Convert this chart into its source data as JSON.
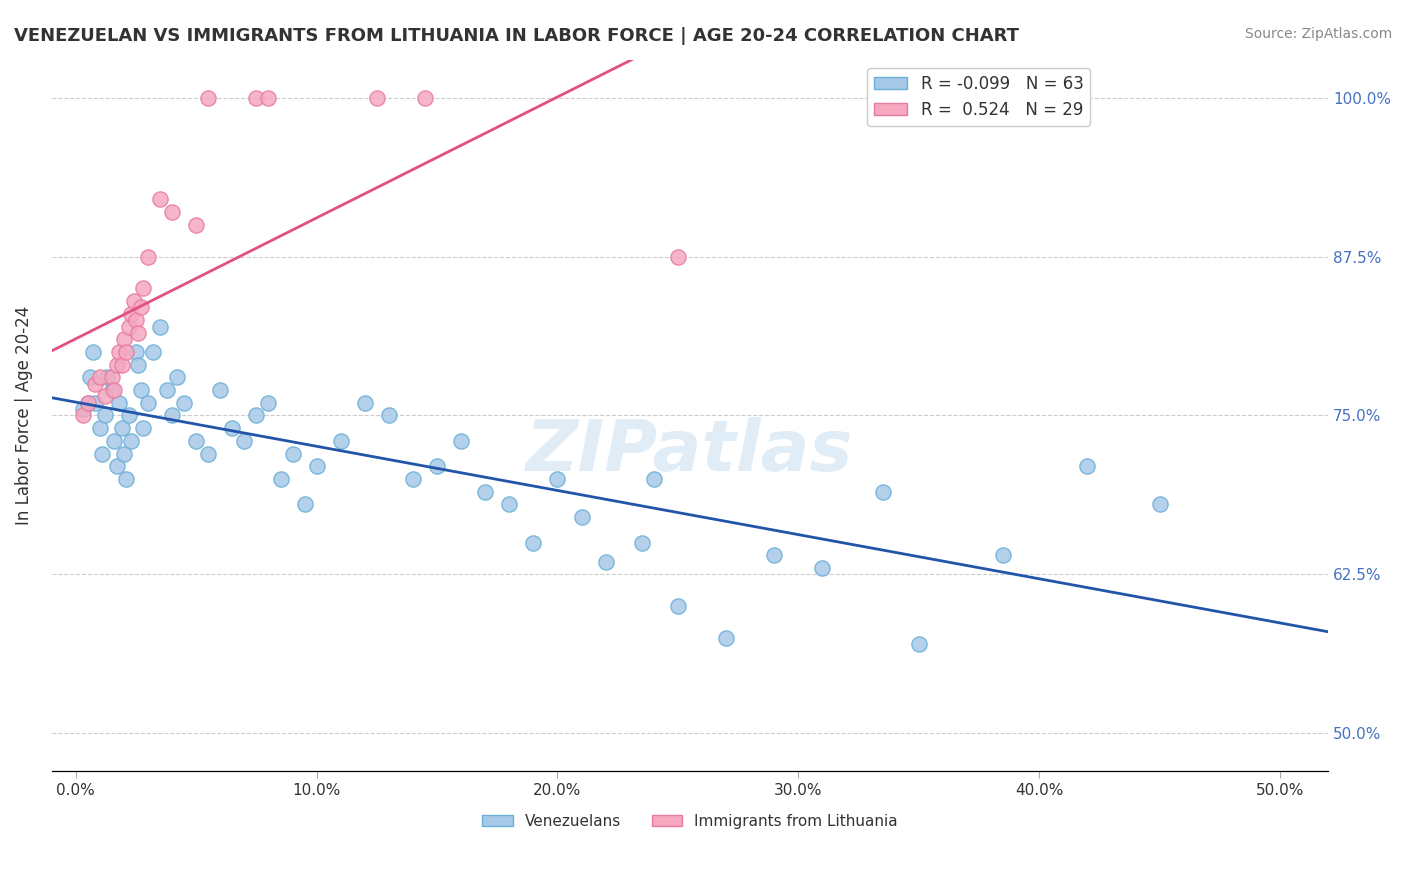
{
  "title": "VENEZUELAN VS IMMIGRANTS FROM LITHUANIA IN LABOR FORCE | AGE 20-24 CORRELATION CHART",
  "source": "Source: ZipAtlas.com",
  "xlabel": "",
  "ylabel": "In Labor Force | Age 20-24",
  "x_tick_labels": [
    "0.0%",
    "10.0%",
    "20.0%",
    "30.0%",
    "40.0%",
    "50.0%"
  ],
  "x_tick_values": [
    0.0,
    10.0,
    20.0,
    30.0,
    40.0,
    50.0
  ],
  "y_tick_labels": [
    "50.0%",
    "62.5%",
    "75.0%",
    "87.5%",
    "100.0%"
  ],
  "y_tick_values": [
    50.0,
    62.5,
    75.0,
    87.5,
    100.0
  ],
  "xlim": [
    -1.0,
    52.0
  ],
  "ylim": [
    47.0,
    103.0
  ],
  "venezuelan_color": "#a8c8e8",
  "venezuela_edge_color": "#6aafd6",
  "lithuania_color": "#f5a8c0",
  "lithuania_edge_color": "#e87aa0",
  "venezuelan_R": -0.099,
  "venezuelan_N": 63,
  "lithuania_R": 0.524,
  "lithuania_N": 29,
  "trend_blue_color": "#2255aa",
  "trend_pink_color": "#e05080",
  "legend_label_venezuelan": "Venezuelans",
  "legend_label_lithuania": "Immigrants from Lithuania",
  "watermark": "ZIPatlas",
  "venezuelan_x": [
    0.3,
    0.5,
    0.6,
    0.7,
    0.8,
    1.0,
    1.1,
    1.2,
    1.3,
    1.5,
    1.6,
    1.7,
    1.8,
    1.9,
    2.0,
    2.1,
    2.2,
    2.3,
    2.5,
    2.6,
    2.7,
    2.8,
    3.0,
    3.2,
    3.5,
    3.8,
    4.0,
    4.2,
    4.5,
    5.0,
    5.5,
    6.0,
    6.5,
    7.0,
    7.5,
    8.0,
    8.5,
    9.0,
    9.5,
    10.0,
    11.0,
    12.0,
    13.0,
    14.0,
    15.0,
    16.0,
    17.0,
    18.0,
    19.0,
    20.0,
    21.0,
    22.0,
    23.5,
    24.0,
    25.0,
    27.0,
    29.0,
    31.0,
    33.5,
    35.0,
    38.5,
    42.0,
    45.0
  ],
  "venezuelan_y": [
    75.5,
    76.0,
    78.0,
    80.0,
    76.0,
    74.0,
    72.0,
    75.0,
    78.0,
    77.0,
    73.0,
    71.0,
    76.0,
    74.0,
    72.0,
    70.0,
    75.0,
    73.0,
    80.0,
    79.0,
    77.0,
    74.0,
    76.0,
    80.0,
    82.0,
    77.0,
    75.0,
    78.0,
    76.0,
    73.0,
    72.0,
    77.0,
    74.0,
    73.0,
    75.0,
    76.0,
    70.0,
    72.0,
    68.0,
    71.0,
    73.0,
    76.0,
    75.0,
    70.0,
    71.0,
    73.0,
    69.0,
    68.0,
    65.0,
    70.0,
    67.0,
    63.5,
    65.0,
    70.0,
    60.0,
    57.5,
    64.0,
    63.0,
    69.0,
    57.0,
    64.0,
    71.0,
    68.0
  ],
  "lithuania_x": [
    0.3,
    0.5,
    0.8,
    1.0,
    1.2,
    1.5,
    1.6,
    1.7,
    1.8,
    1.9,
    2.0,
    2.1,
    2.2,
    2.3,
    2.4,
    2.5,
    2.6,
    2.7,
    2.8,
    3.0,
    3.5,
    4.0,
    5.0,
    5.5,
    7.5,
    8.0,
    12.5,
    14.5,
    25.0
  ],
  "lithuania_y": [
    75.0,
    76.0,
    77.5,
    78.0,
    76.5,
    78.0,
    77.0,
    79.0,
    80.0,
    79.0,
    81.0,
    80.0,
    82.0,
    83.0,
    84.0,
    82.5,
    81.5,
    83.5,
    85.0,
    87.5,
    92.0,
    91.0,
    90.0,
    100.0,
    100.0,
    100.0,
    100.0,
    100.0,
    87.5
  ]
}
